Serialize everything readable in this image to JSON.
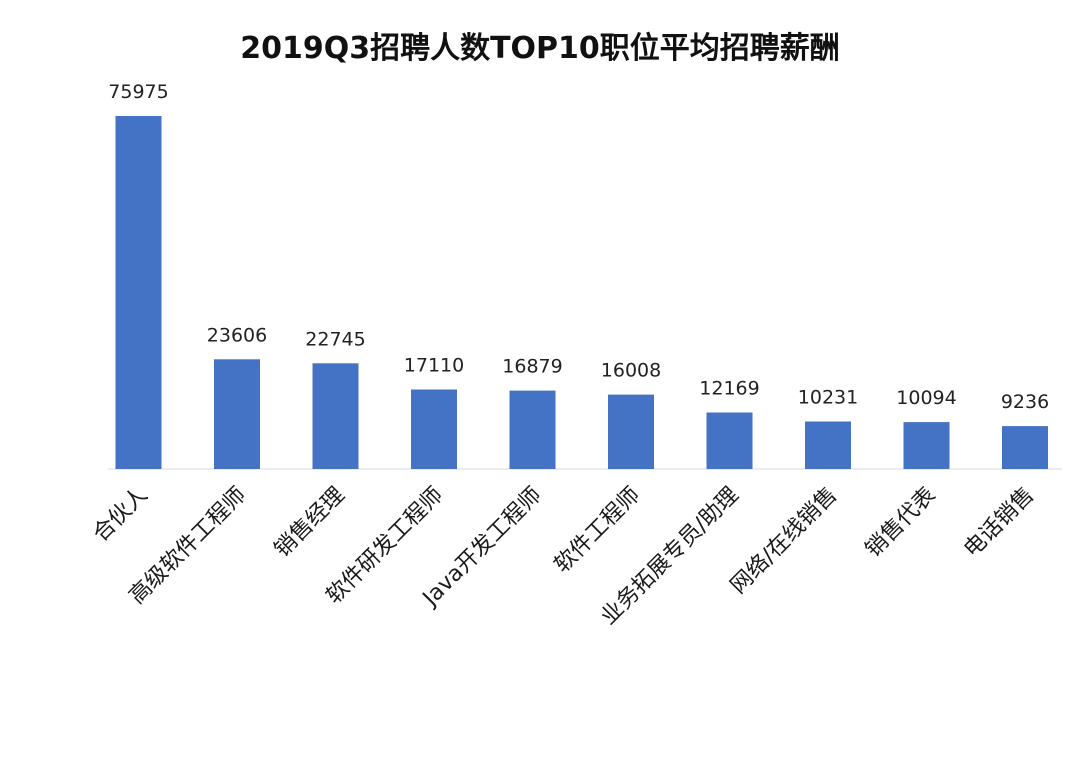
{
  "chart_data": {
    "type": "bar",
    "title": "2019Q3招聘人数TOP10职位平均招聘薪酬",
    "xlabel": "",
    "ylabel": "",
    "categories": [
      "合伙人",
      "高级软件工程师",
      "销售经理",
      "软件研发工程师",
      "Java开发工程师",
      "软件工程师",
      "业务拓展专员/助理",
      "网络/在线销售",
      "销售代表",
      "电话销售"
    ],
    "values": [
      75975,
      23606,
      22745,
      17110,
      16879,
      16008,
      12169,
      10231,
      10094,
      9236
    ],
    "ylim": [
      0,
      75975
    ],
    "grid": false,
    "legend": "none",
    "bar_color": "#4472c4",
    "axis_color": "#d9d9d9"
  }
}
